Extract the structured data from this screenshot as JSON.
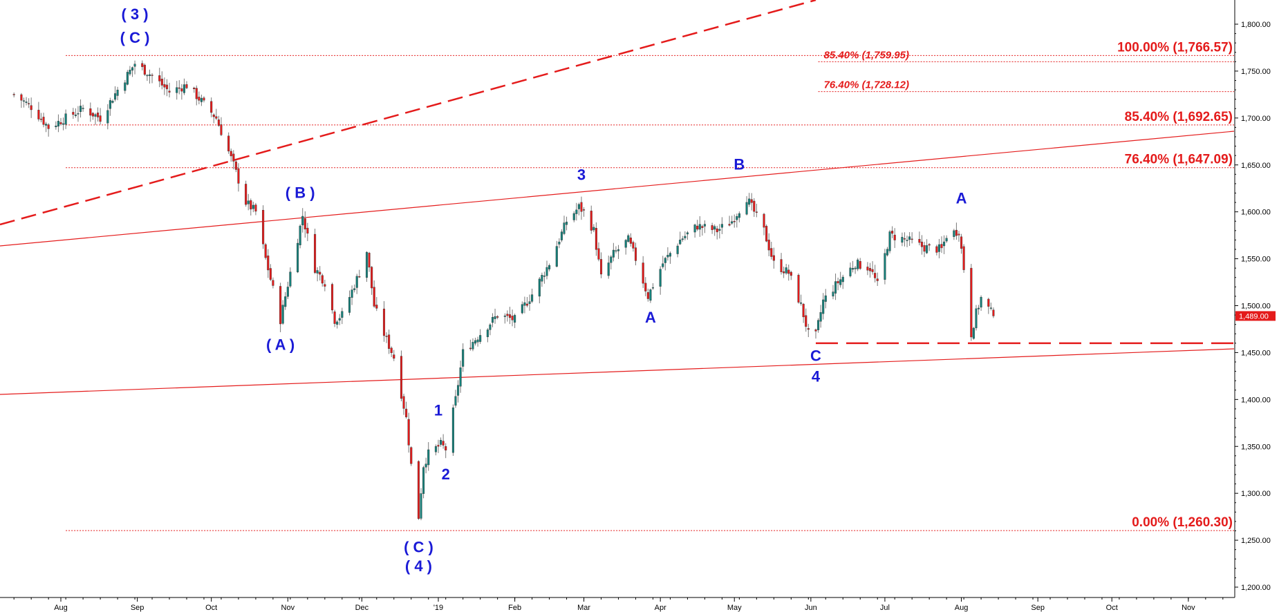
{
  "chart_data": {
    "type": "candlestick",
    "y_axis": {
      "ticks": [
        "1,200.00",
        "1,250.00",
        "1,300.00",
        "1,350.00",
        "1,400.00",
        "1,450.00",
        "1,500.00",
        "1,550.00",
        "1,600.00",
        "1,650.00",
        "1,700.00",
        "1,750.00",
        "1,800.00"
      ],
      "ylim": [
        1185,
        1828
      ]
    },
    "x_axis": {
      "ticks": [
        "Aug",
        "Sep",
        "Oct",
        "Nov",
        "Dec",
        "'19",
        "Feb",
        "Mar",
        "Apr",
        "May",
        "Jun",
        "Jul",
        "Aug",
        "Sep",
        "Oct",
        "Nov"
      ]
    },
    "last_price": "1,489.00",
    "colors": {
      "up": "#16807a",
      "down": "#e41b1b",
      "wave_labels": "#1a1ad6",
      "fib": "#e41b1b",
      "last_price_tag": "#e41b1b"
    },
    "fib_levels_main": [
      {
        "label": "100.00% (1,766.57)",
        "value": 1766.57
      },
      {
        "label": "85.40% (1,692.65)",
        "value": 1692.65
      },
      {
        "label": "76.40% (1,647.09)",
        "value": 1647.09
      },
      {
        "label": "0.00% (1,260.30)",
        "value": 1260.3
      }
    ],
    "fib_levels_secondary": [
      {
        "label": "85.40% (1,759.95)",
        "value": 1759.95
      },
      {
        "label": "76.40% (1,728.12)",
        "value": 1728.12
      }
    ],
    "support_level": 1460,
    "wave_labels": [
      {
        "text": "( 3 )",
        "x": "2018-08-31",
        "y": 1805
      },
      {
        "text": "( C )",
        "x": "2018-08-31",
        "y": 1780
      },
      {
        "text": "( B )",
        "x": "2018-11-06",
        "y": 1615
      },
      {
        "text": "( A )",
        "x": "2018-10-29",
        "y": 1453
      },
      {
        "text": "( C )",
        "x": "2018-12-24",
        "y": 1237
      },
      {
        "text": "( 4 )",
        "x": "2018-12-24",
        "y": 1217
      },
      {
        "text": "1",
        "x": "2019-01-01",
        "y": 1383
      },
      {
        "text": "2",
        "x": "2019-01-04",
        "y": 1315
      },
      {
        "text": "3",
        "x": "2019-02-28",
        "y": 1634
      },
      {
        "text": "A",
        "x": "2019-03-28",
        "y": 1482
      },
      {
        "text": "B",
        "x": "2019-05-03",
        "y": 1645
      },
      {
        "text": "A",
        "x": "2019-08-01",
        "y": 1609
      },
      {
        "text": "C",
        "x": "2019-06-03",
        "y": 1441
      },
      {
        "text": "4",
        "x": "2019-06-03",
        "y": 1419
      }
    ],
    "anchors": [
      [
        "2018-07-13",
        1725
      ],
      [
        "2018-07-20",
        1712
      ],
      [
        "2018-07-27",
        1690
      ],
      [
        "2018-08-03",
        1700
      ],
      [
        "2018-08-10",
        1710
      ],
      [
        "2018-08-17",
        1700
      ],
      [
        "2018-08-24",
        1730
      ],
      [
        "2018-08-31",
        1758
      ],
      [
        "2018-09-07",
        1745
      ],
      [
        "2018-09-14",
        1728
      ],
      [
        "2018-09-21",
        1735
      ],
      [
        "2018-09-28",
        1715
      ],
      [
        "2018-10-03",
        1700
      ],
      [
        "2018-10-10",
        1650
      ],
      [
        "2018-10-15",
        1610
      ],
      [
        "2018-10-19",
        1600
      ],
      [
        "2018-10-23",
        1550
      ],
      [
        "2018-10-29",
        1485
      ],
      [
        "2018-11-02",
        1535
      ],
      [
        "2018-11-07",
        1596
      ],
      [
        "2018-11-12",
        1540
      ],
      [
        "2018-11-16",
        1525
      ],
      [
        "2018-11-20",
        1485
      ],
      [
        "2018-11-23",
        1490
      ],
      [
        "2018-11-30",
        1535
      ],
      [
        "2018-12-03",
        1558
      ],
      [
        "2018-12-06",
        1500
      ],
      [
        "2018-12-10",
        1470
      ],
      [
        "2018-12-14",
        1445
      ],
      [
        "2018-12-19",
        1380
      ],
      [
        "2018-12-21",
        1330
      ],
      [
        "2018-12-24",
        1275
      ],
      [
        "2018-12-26",
        1330
      ],
      [
        "2018-12-28",
        1342
      ],
      [
        "2019-01-02",
        1352
      ],
      [
        "2019-01-04",
        1347
      ],
      [
        "2019-01-08",
        1400
      ],
      [
        "2019-01-11",
        1450
      ],
      [
        "2019-01-18",
        1470
      ],
      [
        "2019-01-25",
        1490
      ],
      [
        "2019-02-01",
        1485
      ],
      [
        "2019-02-08",
        1512
      ],
      [
        "2019-02-15",
        1545
      ],
      [
        "2019-02-22",
        1590
      ],
      [
        "2019-02-27",
        1605
      ],
      [
        "2019-03-01",
        1600
      ],
      [
        "2019-03-05",
        1580
      ],
      [
        "2019-03-08",
        1530
      ],
      [
        "2019-03-13",
        1555
      ],
      [
        "2019-03-19",
        1570
      ],
      [
        "2019-03-22",
        1550
      ],
      [
        "2019-03-27",
        1510
      ],
      [
        "2019-04-02",
        1545
      ],
      [
        "2019-04-09",
        1570
      ],
      [
        "2019-04-16",
        1585
      ],
      [
        "2019-04-24",
        1580
      ],
      [
        "2019-04-30",
        1590
      ],
      [
        "2019-05-06",
        1615
      ],
      [
        "2019-05-13",
        1580
      ],
      [
        "2019-05-17",
        1545
      ],
      [
        "2019-05-23",
        1535
      ],
      [
        "2019-05-28",
        1500
      ],
      [
        "2019-05-31",
        1470
      ],
      [
        "2019-06-03",
        1468
      ],
      [
        "2019-06-06",
        1505
      ],
      [
        "2019-06-12",
        1525
      ],
      [
        "2019-06-19",
        1545
      ],
      [
        "2019-06-25",
        1540
      ],
      [
        "2019-06-28",
        1522
      ],
      [
        "2019-07-03",
        1575
      ],
      [
        "2019-07-10",
        1570
      ],
      [
        "2019-07-17",
        1562
      ],
      [
        "2019-07-24",
        1560
      ],
      [
        "2019-07-26",
        1575
      ],
      [
        "2019-07-31",
        1580
      ],
      [
        "2019-08-02",
        1540
      ],
      [
        "2019-08-05",
        1470
      ],
      [
        "2019-08-07",
        1492
      ],
      [
        "2019-08-09",
        1508
      ],
      [
        "2019-08-12",
        1497
      ],
      [
        "2019-08-14",
        1489
      ]
    ]
  }
}
